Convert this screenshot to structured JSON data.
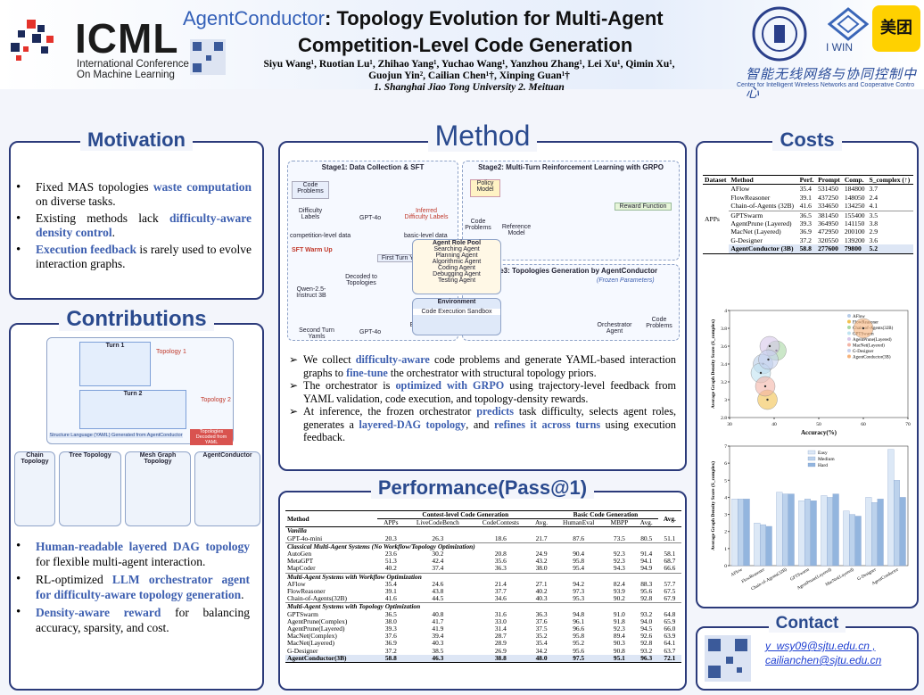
{
  "header": {
    "logo": "ICML",
    "conference": [
      "International Conference",
      "On Machine Learning"
    ],
    "title_brand": "AgentConductor",
    "title_rest": ": Topology Evolution for Multi-Agent",
    "title_line2": "Competition-Level Code Generation",
    "authors": [
      "Siyu Wang¹, Ruotian Lu¹, Zhihao Yang¹, Yuchao Wang¹, Yanzhou Zhang¹, Lei Xu¹, Qimin Xu¹,",
      "Guojun Yin², Cailian Chen¹†, Xinping Guan¹†"
    ],
    "affiliations": "1. Shanghai Jiao Tong University  2. Meituan",
    "partner_iwin": "I WIN",
    "partner_meituan": "美团",
    "center_cn": "智能无线网络与协同控制中心",
    "center_en": "Center for Intelligent Wireless Networks and Cooperative Contro"
  },
  "motivation": {
    "title": "Motivation",
    "bullets": [
      [
        "Fixed MAS topologies ",
        "waste computation",
        " on diverse tasks."
      ],
      [
        "Existing methods lack ",
        "difficulty-aware density control",
        "."
      ],
      [
        "",
        "Execution feedback",
        " is rarely used to evolve interaction graphs."
      ]
    ]
  },
  "contributions": {
    "title": "Contributions",
    "figure_top": [
      "Turn 1",
      "Turn 2",
      "Topology 1",
      "Topology 2",
      "Structure Language (YAML) Generated from AgentConductor",
      "Topologies Decoded from YAML"
    ],
    "figure_bottom": [
      "Chain Topology",
      "Tree Topology",
      "Mesh Graph Topology",
      "AgentConductor"
    ],
    "bullets": [
      [
        "Human-readable layered DAG topology",
        " for flexible multi-agent interaction."
      ],
      [
        "RL-optimized ",
        "LLM orchestrator agent for difficulty-aware topology generation",
        "."
      ],
      [
        "Density-aware reward",
        " for balancing accuracy, sparsity, and cost."
      ]
    ]
  },
  "method": {
    "title": "Method",
    "stage1": "Stage1: Data Collection & SFT",
    "stage2": "Stage2: Multi-Turn Reinforcement Learning with GRPO",
    "stage3": "Stage3: Topologies Generation by AgentConductor",
    "labels": [
      "Code Problems",
      "Difficulty Labels",
      "Inferred Difficulty Labels",
      "competition-level data",
      "basic-level data",
      "GPT-4o",
      "SFT Warm Up",
      "First Turn Yamls",
      "Decoded to Topologies",
      "Qwen-2.5-Instruct 3B",
      "Second Turn Yamls",
      "Execution Results",
      "Agent Role Pool",
      "Environment",
      "Code Execution Sandbox",
      "Policy Model",
      "Reference Model",
      "Reward Function",
      "Orchestrator Agent",
      "(Frozen Parameters)"
    ],
    "roles": [
      "Searching Agent",
      "Planning Agent",
      "Algorithmic Agent",
      "Coding Agent",
      "Debugging Agent",
      "Testing Agent"
    ],
    "bullets": [
      [
        "We collect ",
        "difficulty-aware",
        " code problems and generate YAML-based interaction graphs to ",
        "fine-tune",
        " the orchestrator with structural topology priors."
      ],
      [
        "The orchestrator is ",
        "optimized with GRPO",
        " using trajectory-level feedback from YAML validation, code execution, and topology-density rewards."
      ],
      [
        "At inference, the frozen orchestrator ",
        "predicts",
        " task difficulty, selects agent roles, generates a ",
        "layered-DAG topology",
        ", and ",
        "refines it across turns",
        " using execution feedback."
      ]
    ]
  },
  "performance": {
    "title": "Performance(Pass@1)",
    "group_headers": [
      "Contest-level Code Generation",
      "Basic Code Generation"
    ],
    "columns": [
      "Method",
      "APPs",
      "LiveCodeBench",
      "CodeContests",
      "Avg.",
      "HumanEval",
      "MBPP",
      "Avg.",
      "Avg."
    ],
    "groups": [
      {
        "title": "Vanilla",
        "rows": [
          {
            "method": "GPT-4o-mini",
            "values": [
              "20.3",
              "26.3",
              "18.6",
              "21.7",
              "87.6",
              "73.5",
              "80.5",
              "51.1"
            ]
          }
        ]
      },
      {
        "title": "Classical Multi-Agent Systems (No Workflow/Topology Optimization)",
        "rows": [
          {
            "method": "AutoGen",
            "values": [
              "23.6",
              "30.2",
              "20.8",
              "24.9",
              "90.4",
              "92.3",
              "91.4",
              "58.1"
            ]
          },
          {
            "method": "MetaGPT",
            "values": [
              "51.3",
              "42.4",
              "35.6",
              "43.2",
              "95.8",
              "92.3",
              "94.1",
              "68.7"
            ]
          },
          {
            "method": "MapCoder",
            "values": [
              "40.2",
              "37.4",
              "36.3",
              "38.0",
              "95.4",
              "94.3",
              "94.9",
              "66.6"
            ]
          }
        ]
      },
      {
        "title": "Multi-Agent Systems with Workflow Optimization",
        "rows": [
          {
            "method": "AFlow",
            "values": [
              "35.4",
              "24.6",
              "21.4",
              "27.1",
              "94.2",
              "82.4",
              "88.3",
              "57.7"
            ]
          },
          {
            "method": "FlowReasoner",
            "values": [
              "39.1",
              "43.8",
              "37.7",
              "40.2",
              "97.3",
              "93.9",
              "95.6",
              "67.5"
            ]
          },
          {
            "method": "Chain-of-Agents(32B)",
            "values": [
              "41.6",
              "44.5",
              "34.6",
              "40.3",
              "95.3",
              "90.2",
              "92.8",
              "67.9"
            ]
          }
        ]
      },
      {
        "title": "Multi-Agent Systems with Topology Optimization",
        "rows": [
          {
            "method": "GPTSwarm",
            "values": [
              "36.5",
              "40.8",
              "31.6",
              "36.3",
              "94.8",
              "91.0",
              "93.2",
              "64.8"
            ]
          },
          {
            "method": "AgentPrune(Complex)",
            "values": [
              "38.0",
              "41.7",
              "33.0",
              "37.6",
              "96.1",
              "91.8",
              "94.0",
              "65.9"
            ]
          },
          {
            "method": "AgentPrune(Layered)",
            "values": [
              "39.3",
              "41.9",
              "31.4",
              "37.5",
              "96.6",
              "92.3",
              "94.5",
              "66.0"
            ]
          },
          {
            "method": "MacNet(Complex)",
            "values": [
              "37.6",
              "39.4",
              "28.7",
              "35.2",
              "95.8",
              "89.4",
              "92.6",
              "63.9"
            ]
          },
          {
            "method": "MacNet(Layered)",
            "values": [
              "36.9",
              "40.3",
              "28.9",
              "35.4",
              "95.2",
              "90.3",
              "92.8",
              "64.1"
            ]
          },
          {
            "method": "G-Designer",
            "values": [
              "37.2",
              "38.5",
              "26.9",
              "34.2",
              "95.6",
              "90.8",
              "93.2",
              "63.7"
            ]
          },
          {
            "method": "AgentConductor(3B)",
            "values": [
              "58.8",
              "46.3",
              "38.8",
              "48.0",
              "97.5",
              "95.1",
              "96.3",
              "72.1"
            ]
          }
        ]
      }
    ]
  },
  "costs": {
    "title": "Costs",
    "table": {
      "columns": [
        "Dataset",
        "Method",
        "Perf.",
        "Prompt",
        "Comp.",
        "S_complex (↑)"
      ],
      "dataset": "APPs",
      "rows": [
        [
          "AFlow",
          "35.4",
          "531450",
          "184800",
          "3.7"
        ],
        [
          "FlowReasoner",
          "39.1",
          "437250",
          "148050",
          "2.4"
        ],
        [
          "Chain-of-Agents (32B)",
          "41.6",
          "334650",
          "134250",
          "4.1"
        ],
        [
          "GPTSwarm",
          "36.5",
          "381450",
          "155400",
          "3.5"
        ],
        [
          "AgentPrune (Layered)",
          "39.3",
          "364950",
          "141150",
          "3.8"
        ],
        [
          "MacNet (Layered)",
          "36.9",
          "472950",
          "200100",
          "2.9"
        ],
        [
          "G-Designer",
          "37.2",
          "320550",
          "139200",
          "3.6"
        ],
        [
          "AgentConductor (3B)",
          "58.8",
          "277600",
          "79800",
          "5.2"
        ]
      ]
    },
    "bubble_chart": {
      "type": "scatter",
      "x_label": "Accuracy(%)",
      "y_label": "Average Graph Density Score (S_complex)",
      "xlim": [
        30,
        70
      ],
      "xticks": [
        30,
        40,
        50,
        60,
        70
      ],
      "ylim": [
        2.8,
        4.0
      ],
      "yticks": [
        2.8,
        3.0,
        3.2,
        3.4,
        3.6,
        3.8,
        4.0
      ],
      "series": [
        {
          "name": "AFlow",
          "color": "#b7cde8",
          "x": [
            37.5
          ],
          "values": [
            3.4
          ]
        },
        {
          "name": "FlowReasoner",
          "color": "#f2c14e",
          "x": [
            38.5
          ],
          "values": [
            3.0
          ]
        },
        {
          "name": "Chain-of-Agents(32B)",
          "color": "#a9d7a4",
          "x": [
            40.5
          ],
          "values": [
            3.55
          ]
        },
        {
          "name": "GPTSwarm",
          "color": "#bfe3f1",
          "x": [
            37.0
          ],
          "values": [
            3.3
          ]
        },
        {
          "name": "AgentPrune(Layered)",
          "color": "#d6c6ea",
          "x": [
            39.0
          ],
          "values": [
            3.6
          ]
        },
        {
          "name": "MacNet(Layered)",
          "color": "#f3b4a6",
          "x": [
            38.0
          ],
          "values": [
            3.15
          ]
        },
        {
          "name": "G-Designer",
          "color": "#c5d0ee",
          "x": [
            38.7
          ],
          "values": [
            3.45
          ]
        },
        {
          "name": "AgentConductor(3B)",
          "color": "#f6b27a",
          "x": [
            60.0
          ],
          "values": [
            3.8
          ]
        }
      ]
    },
    "bar_chart": {
      "type": "bar",
      "y_label": "Average Graph Density Score (S_complex)",
      "categories": [
        "AFlow",
        "FlowReasoner",
        "Chain-of-Agents(32B)",
        "GPTSwarm",
        "AgentPrune(Layered)",
        "MacNet(Layered)",
        "G-Designer",
        "AgentConductor"
      ],
      "ylim": [
        0,
        7
      ],
      "yticks": [
        0,
        1,
        2,
        3,
        4,
        5,
        6,
        7
      ],
      "series": [
        {
          "name": "Easy",
          "color": "#dce8f6",
          "values": [
            3.9,
            2.5,
            4.3,
            3.8,
            4.1,
            3.2,
            4.0,
            6.8
          ]
        },
        {
          "name": "Medium",
          "color": "#bcd2ec",
          "values": [
            3.9,
            2.4,
            4.2,
            3.9,
            4.0,
            3.0,
            3.7,
            5.0
          ]
        },
        {
          "name": "Hard",
          "color": "#93b5de",
          "values": [
            3.9,
            2.3,
            4.2,
            3.8,
            4.2,
            2.9,
            3.9,
            4.0
          ]
        }
      ]
    }
  },
  "contact": {
    "title": "Contact",
    "emails": [
      "y_wsy09@sjtu.edu.cn ,",
      "cailianchen@sjtu.edu.cn"
    ]
  }
}
